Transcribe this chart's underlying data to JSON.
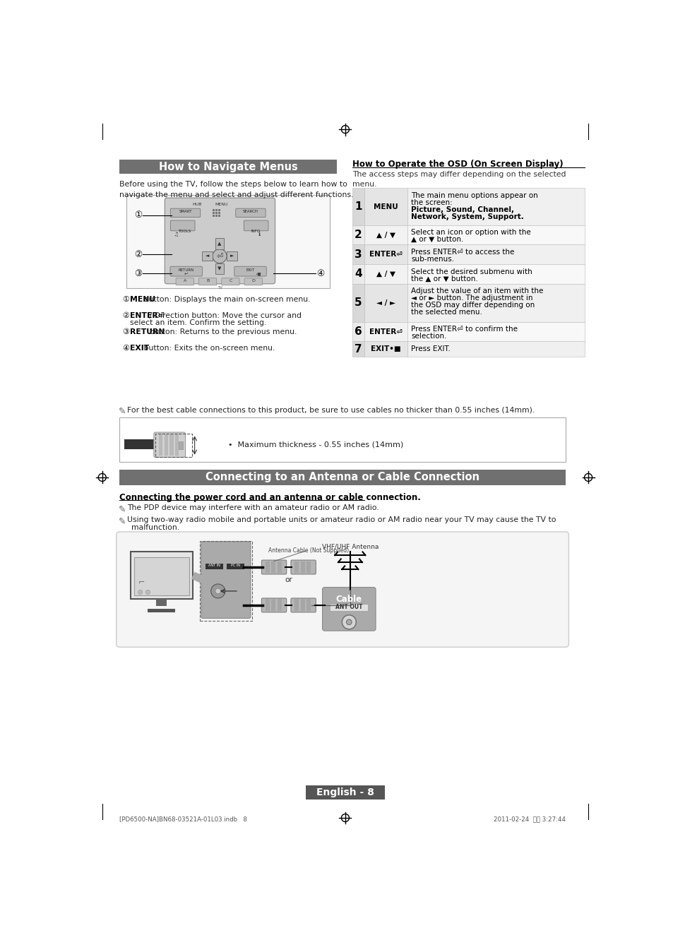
{
  "page_bg": "#ffffff",
  "section1_title": "How to Navigate Menus",
  "section1_title_bg": "#707070",
  "section1_title_color": "#ffffff",
  "section1_intro": "Before using the TV, follow the steps below to learn how to\nnavigate the menu and select and adjust different functions.",
  "section1_bullets": [
    [
      "bold",
      "MENU",
      " button: Displays the main on-screen menu."
    ],
    [
      "bold",
      "ENTER⏎",
      " / Direction button: Move the cursor and\nselect an item. Confirm the setting."
    ],
    [
      "bold",
      "RETURN",
      " button: Returns to the previous menu."
    ],
    [
      "bold",
      "EXIT",
      " button: Exits the on-screen menu."
    ]
  ],
  "osd_title": "How to Operate the OSD (On Screen Display)",
  "osd_intro": "The access steps may differ depending on the selected\nmenu.",
  "osd_rows": [
    {
      "num": "1",
      "key": "MENU",
      "desc": "The main menu options appear on\nthe screen:\nPicture, Sound, Channel,\nNetwork, System, Support.",
      "bold_from": 2
    },
    {
      "num": "2",
      "key": "▲ / ▼",
      "desc": "Select an icon or option with the\n▲ or ▼ button.",
      "bold_from": -1
    },
    {
      "num": "3",
      "key": "ENTER⏎",
      "desc": "Press ENTER⏎ to access the\nsub-menus.",
      "bold_from": -1
    },
    {
      "num": "4",
      "key": "▲ / ▼",
      "desc": "Select the desired submenu with\nthe ▲ or ▼ button.",
      "bold_from": -1
    },
    {
      "num": "5",
      "key": "◄ / ►",
      "desc": "Adjust the value of an item with the\n◄ or ► button. The adjustment in\nthe OSD may differ depending on\nthe selected menu.",
      "bold_from": -1
    },
    {
      "num": "6",
      "key": "ENTER⏎",
      "desc": "Press ENTER⏎ to confirm the\nselection.",
      "bold_from": -1
    },
    {
      "num": "7",
      "key": "EXIT•■",
      "desc": "Press EXIT.",
      "bold_from": -1
    }
  ],
  "cable_note": "For the best cable connections to this product, be sure to use cables no thicker than 0.55 inches (14mm).",
  "cable_box_text": "•  Maximum thickness - 0.55 inches (14mm)",
  "section2_title": "Connecting to an Antenna or Cable Connection",
  "section2_title_bg": "#707070",
  "section2_title_color": "#ffffff",
  "section2_sub": "Connecting the power cord and an antenna or cable connection.",
  "section2_note1": "The PDP device may interfere with an amateur radio or AM radio.",
  "section2_note2": "Using two-way radio mobile and portable units or amateur radio or AM radio near your TV may cause the TV to\nmalfunction.",
  "footer_text": "English - 8",
  "footer_bg": "#555555",
  "footer_color": "#ffffff",
  "bottom_file": "[PD6500-NA]BN68-03521A-01L03.indb   8",
  "bottom_date": "2011-02-24  오후 3:27:44"
}
